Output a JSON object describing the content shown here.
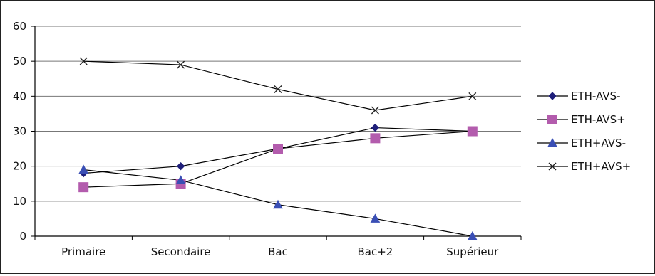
{
  "chart_data": {
    "type": "line",
    "title": "",
    "xlabel": "",
    "ylabel": "",
    "categories": [
      "Primaire",
      "Secondaire",
      "Bac",
      "Bac+2",
      "Supérieur"
    ],
    "ylim": [
      0,
      60
    ],
    "yticks": [
      0,
      10,
      20,
      30,
      40,
      50,
      60
    ],
    "grid": true,
    "legend_position": "right",
    "series": [
      {
        "name": "ETH-AVS-",
        "values": [
          18,
          20,
          25,
          31,
          30
        ],
        "marker": "diamond",
        "color": "#1f1f7a"
      },
      {
        "name": "ETH-AVS+",
        "values": [
          14,
          15,
          25,
          28,
          30
        ],
        "marker": "square",
        "color": "#b35cad"
      },
      {
        "name": "ETH+AVS-",
        "values": [
          19,
          16,
          9,
          5,
          0
        ],
        "marker": "triangle",
        "color": "#3a4fb5"
      },
      {
        "name": "ETH+AVS+",
        "values": [
          50,
          49,
          42,
          36,
          40
        ],
        "marker": "x",
        "color": "#222222"
      }
    ],
    "line_color": "#000000",
    "grid_color": "#777777"
  }
}
